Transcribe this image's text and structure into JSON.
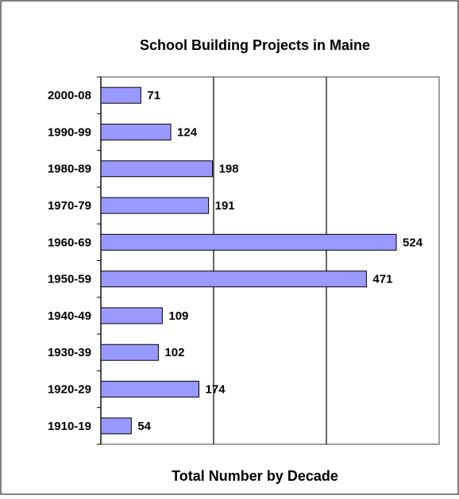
{
  "chart_data": {
    "type": "bar",
    "orientation": "horizontal",
    "title": "School Building Projects in Maine",
    "x_label": "Total Number by Decade",
    "categories": [
      "2000-08",
      "1990-99",
      "1980-89",
      "1970-79",
      "1960-69",
      "1950-59",
      "1940-49",
      "1930-39",
      "1920-29",
      "1910-19"
    ],
    "values": [
      71,
      124,
      198,
      191,
      524,
      471,
      109,
      102,
      174,
      54
    ],
    "color": "#9999ff",
    "xlim": [
      0,
      600
    ],
    "xticks": [
      200,
      400
    ],
    "grid": true
  }
}
